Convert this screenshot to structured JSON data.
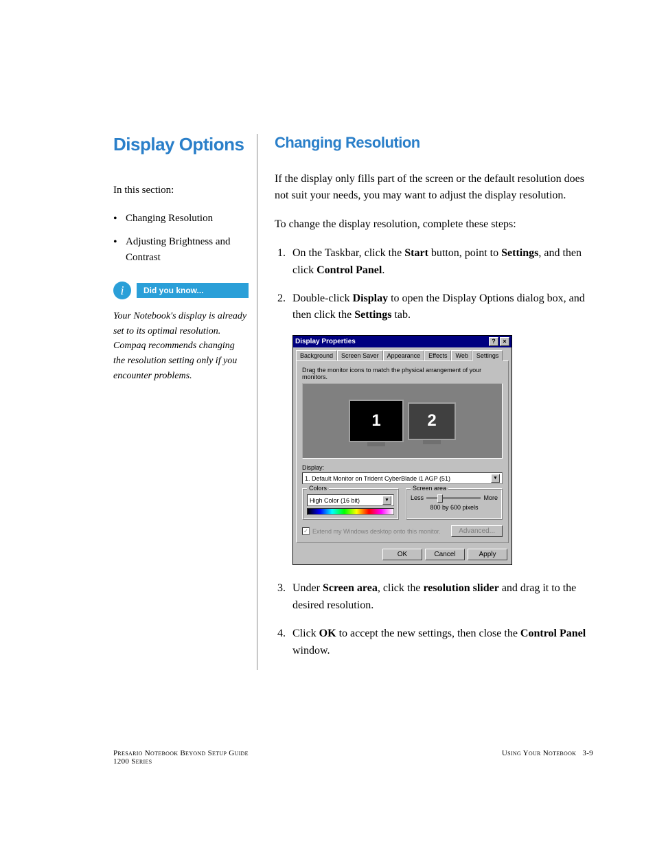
{
  "colors": {
    "heading": "#2a7fc9",
    "callout_bg": "#2a9fd8",
    "callout_fg": "#ffffff",
    "dialog_bg": "#c0c0c0",
    "titlebar_bg": "#000080",
    "body_text": "#000000"
  },
  "left": {
    "title": "Display Options",
    "intro": "In this section:",
    "bullets": [
      "Changing Resolution",
      "Adjusting Brightness and Contrast"
    ],
    "callout_label": "Did you know...",
    "tip": "Your Notebook's display is already set to its optimal resolution. Compaq recommends changing the resolution setting only if you encounter problems."
  },
  "right": {
    "title": "Changing Resolution",
    "p1": "If the display only fills part of the screen or the default resolution does not suit your needs, you may want to adjust the display resolution.",
    "p2": "To change the display resolution, complete these steps:",
    "step1": {
      "pre": "On the Taskbar, click the ",
      "b1": "Start",
      "mid1": " button, point to ",
      "b2": "Settings",
      "mid2": ", and then click ",
      "b3": "Control Panel",
      "post": "."
    },
    "step2": {
      "pre": "Double-click ",
      "b1": "Display",
      "mid1": " to open the Display Options dialog box, and then click the ",
      "b2": "Settings",
      "post": " tab."
    },
    "step3": {
      "pre": "Under ",
      "b1": "Screen area",
      "mid1": ", click the ",
      "b2": "resolution slider",
      "post": " and drag it to the desired resolution."
    },
    "step4": {
      "pre": "Click ",
      "b1": "OK",
      "mid1": " to accept the new settings, then close the ",
      "b2": "Control Panel",
      "post": " window."
    }
  },
  "dialog": {
    "title": "Display Properties",
    "help_btn": "?",
    "close_btn": "×",
    "tabs": [
      "Background",
      "Screen Saver",
      "Appearance",
      "Effects",
      "Web",
      "Settings"
    ],
    "active_tab_index": 5,
    "drag_hint": "Drag the monitor icons to match the physical arrangement of your monitors.",
    "monitors": [
      "1",
      "2"
    ],
    "display_label": "Display:",
    "display_value": "1. Default Monitor on Trident CyberBlade i1 AGP (51)",
    "colors_group": "Colors",
    "colors_value": "High Color (16 bit)",
    "screen_area_group": "Screen area",
    "less": "Less",
    "more": "More",
    "resolution": "800 by 600 pixels",
    "extend_checkbox": "Extend my Windows desktop onto this monitor.",
    "advanced_btn": "Advanced...",
    "ok_btn": "OK",
    "cancel_btn": "Cancel",
    "apply_btn": "Apply"
  },
  "footer": {
    "left_line1": "Presario Notebook Beyond Setup Guide",
    "left_line2": "1200 Series",
    "right_section": "Using Your Notebook",
    "page_num": "3-9"
  }
}
